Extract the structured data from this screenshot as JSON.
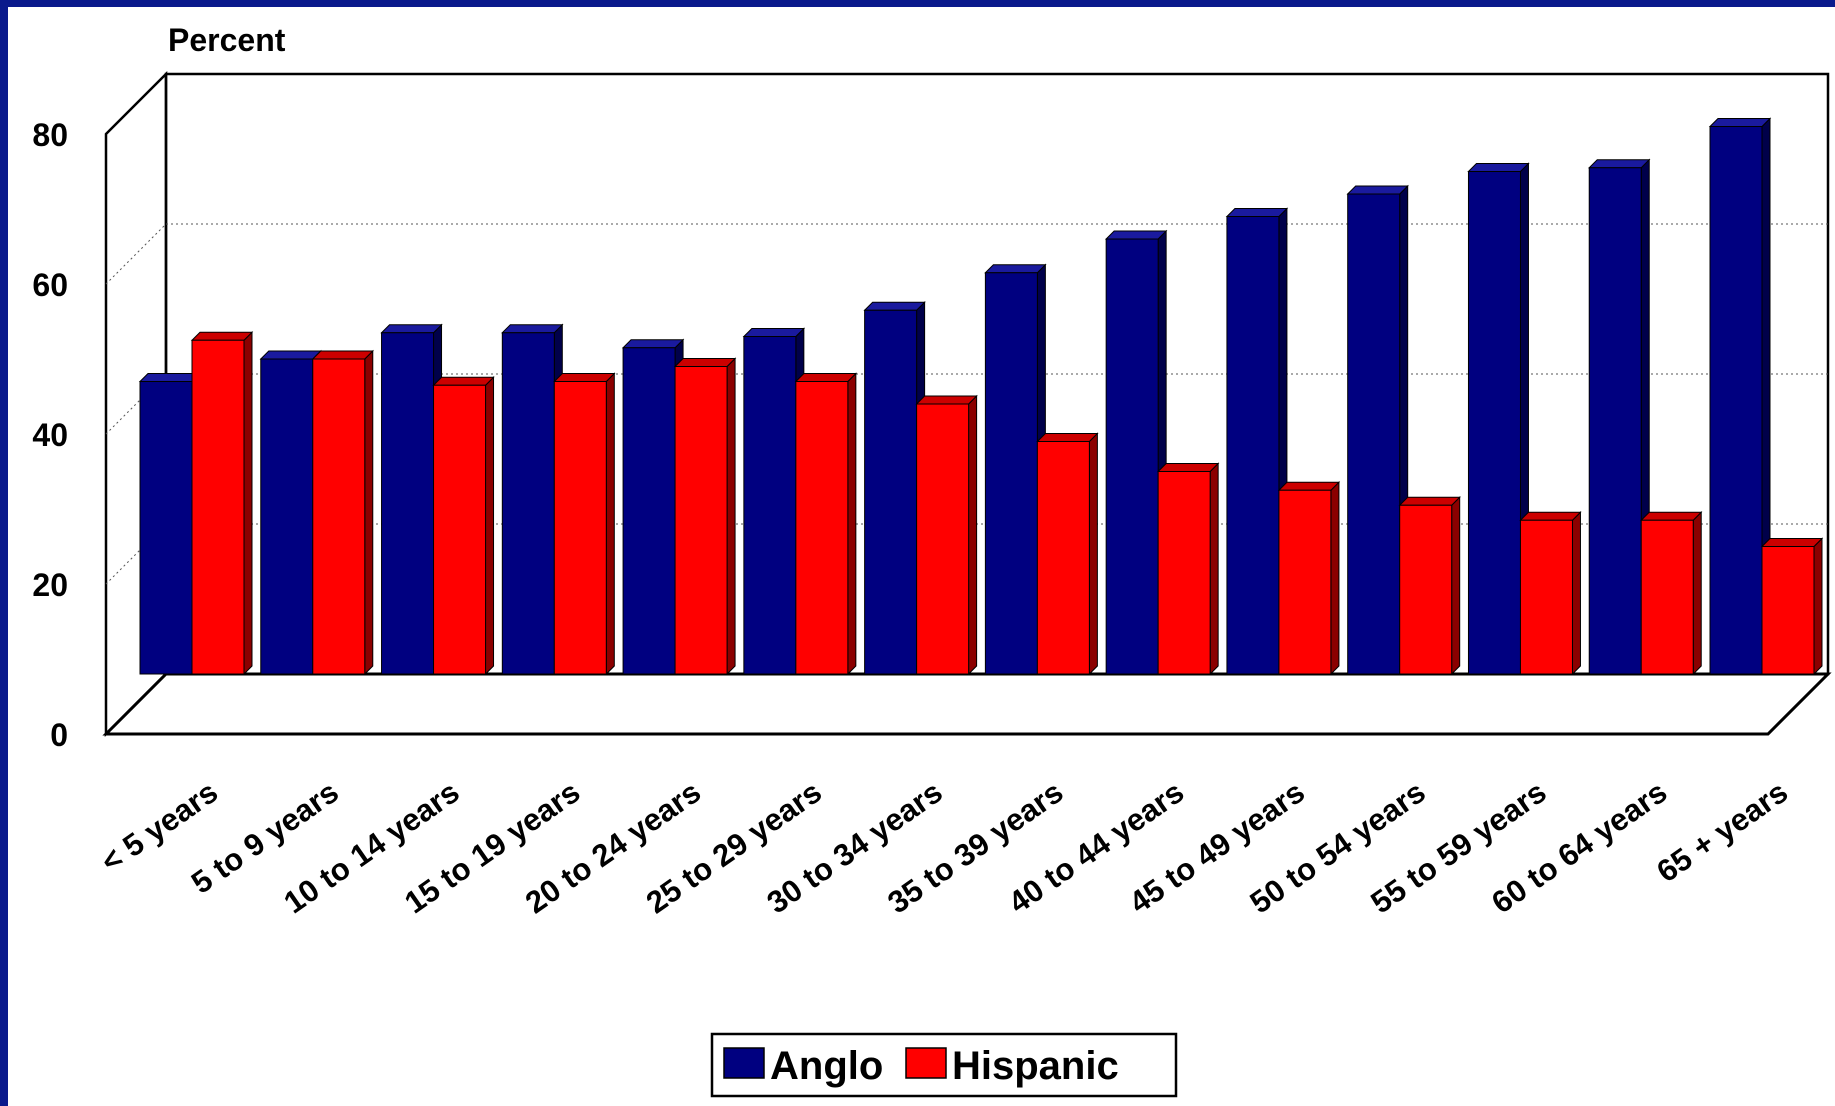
{
  "chart_data": {
    "type": "bar",
    "title": "",
    "ylabel": "Percent",
    "xlabel": "",
    "ylim": [
      0,
      80
    ],
    "yticks": [
      0,
      20,
      40,
      60,
      80
    ],
    "grid": true,
    "legend_position": "bottom-center",
    "categories": [
      "< 5 years",
      "5 to 9 years",
      "10 to 14 years",
      "15 to 19 years",
      "20 to 24 years",
      "25 to 29 years",
      "30 to 34 years",
      "35 to 39 years",
      "40 to 44 years",
      "45 to 49 years",
      "50 to 54 years",
      "55 to 59 years",
      "60 to 64 years",
      "65 + years"
    ],
    "series": [
      {
        "name": "Anglo",
        "color": "#000080",
        "values": [
          39,
          42,
          45.5,
          45.5,
          43.5,
          45,
          48.5,
          53.5,
          58,
          61,
          64,
          67,
          67.5,
          73
        ]
      },
      {
        "name": "Hispanic",
        "color": "#ff0000",
        "values": [
          44.5,
          42,
          38.5,
          39,
          41,
          39,
          36,
          31,
          27,
          24.5,
          22.5,
          20.5,
          20.5,
          17
        ]
      }
    ]
  }
}
